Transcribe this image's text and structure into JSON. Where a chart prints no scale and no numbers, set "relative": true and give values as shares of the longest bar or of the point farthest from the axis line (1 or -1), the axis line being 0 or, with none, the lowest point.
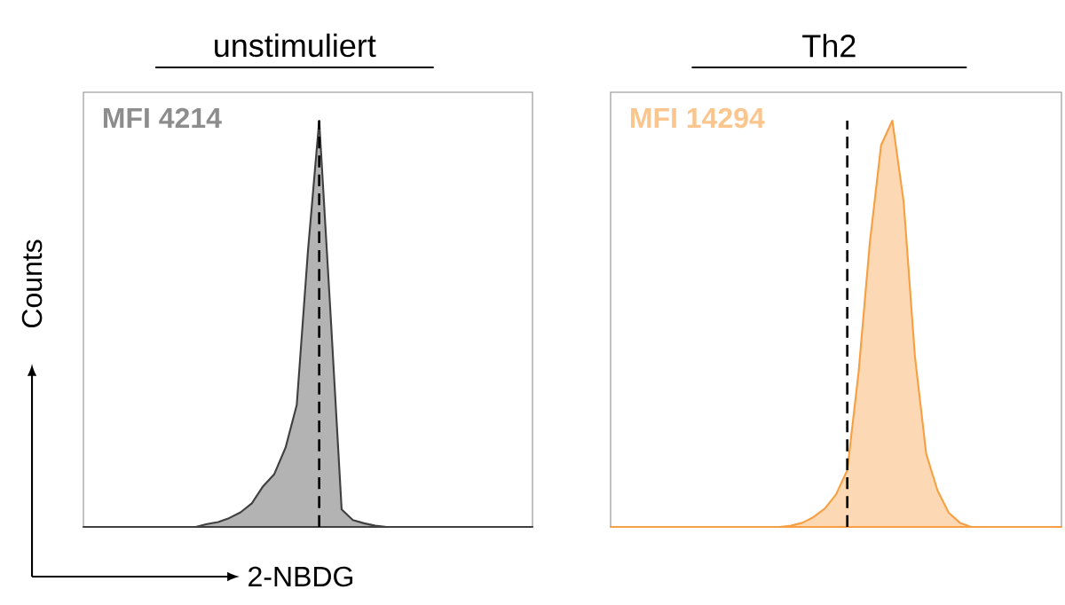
{
  "chart_data": [
    {
      "type": "area",
      "relative": true,
      "title": "unstimuliert",
      "xlabel": "2-NBDG",
      "ylabel": "Counts",
      "tick_labels": false,
      "categories": [
        null,
        null,
        null,
        null,
        null,
        null,
        null,
        null,
        null,
        null,
        null,
        null,
        null,
        null,
        null,
        null,
        null,
        null,
        null,
        null,
        null,
        null,
        null,
        null,
        null,
        null,
        null,
        null,
        null,
        null,
        null,
        null,
        null,
        null,
        null,
        null,
        null,
        null,
        null,
        null,
        null
      ],
      "annotations": [
        "MFI 4214"
      ],
      "series": [
        {
          "color": "#404040",
          "values": [
            0,
            0,
            0,
            0,
            0,
            0,
            0,
            0,
            0,
            0,
            0,
            0.007,
            0.012,
            0.022,
            0.036,
            0.058,
            0.1,
            0.13,
            0.195,
            0.3,
            0.68,
            1.0,
            0.53,
            0.043,
            0.017,
            0.009,
            0.003,
            0,
            0,
            0,
            0,
            0,
            0,
            0,
            0,
            0,
            0,
            0,
            0,
            0,
            0
          ]
        }
      ]
    },
    {
      "type": "area",
      "relative": true,
      "title": "Th2",
      "tick_labels": false,
      "categories": [
        null,
        null,
        null,
        null,
        null,
        null,
        null,
        null,
        null,
        null,
        null,
        null,
        null,
        null,
        null,
        null,
        null,
        null,
        null,
        null,
        null,
        null,
        null,
        null,
        null,
        null,
        null,
        null,
        null,
        null,
        null,
        null,
        null,
        null,
        null,
        null,
        null,
        null,
        null,
        null,
        null
      ],
      "annotations": [
        "MFI 14294"
      ],
      "series": [
        {
          "color": "#f7a043",
          "values": [
            0,
            0,
            0,
            0,
            0,
            0,
            0,
            0,
            0,
            0,
            0,
            0,
            0,
            0,
            0,
            0,
            0.003,
            0.01,
            0.024,
            0.045,
            0.08,
            0.14,
            0.38,
            0.7,
            0.94,
            1.0,
            0.8,
            0.42,
            0.18,
            0.09,
            0.035,
            0.01,
            0,
            0,
            0,
            0,
            0,
            0,
            0,
            0,
            0
          ]
        }
      ]
    }
  ]
}
